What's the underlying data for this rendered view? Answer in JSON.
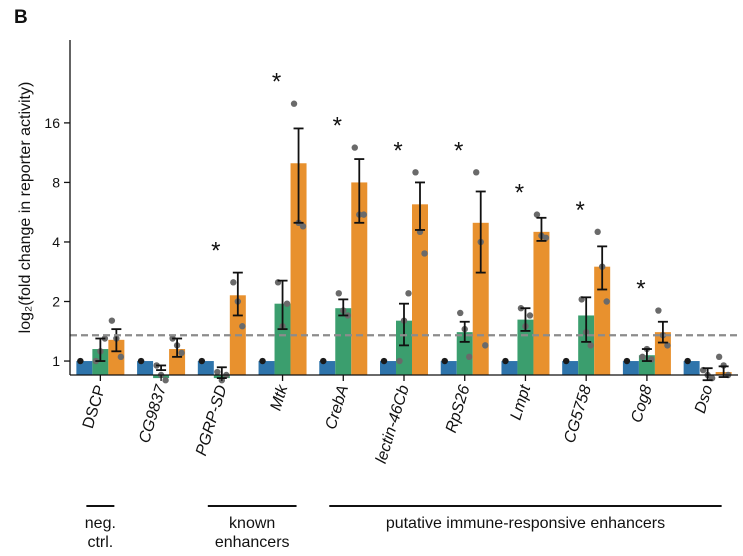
{
  "panel_label": "B",
  "chart_data": {
    "type": "bar",
    "ylabel": "log₂(fold change in reporter activity)",
    "yscale": "log2",
    "ylim": [
      0.85,
      42
    ],
    "ytick_values": [
      1,
      2,
      4,
      8,
      16
    ],
    "ytick_labels": [
      "1",
      "2",
      "4",
      "8",
      "16"
    ],
    "reference_line": {
      "y": 1.35,
      "style": "dashed",
      "color": "#8c8c8c"
    },
    "categories": [
      "DSCP",
      "CG9837",
      "PGRP-SD",
      "Mtk",
      "CrebA",
      "lectin-46Cb",
      "RpS26",
      "Lmpt",
      "CG5758",
      "Cog8",
      "Dso"
    ],
    "italic_categories": [
      false,
      true,
      true,
      true,
      true,
      true,
      true,
      true,
      true,
      true,
      true
    ],
    "series": [
      {
        "color": "#2e74ab",
        "values": [
          1.0,
          1.0,
          1.0,
          1.0,
          1.0,
          1.0,
          1.0,
          1.0,
          1.0,
          1.0,
          1.0
        ],
        "err_low": [
          null,
          null,
          null,
          null,
          null,
          null,
          null,
          null,
          null,
          null,
          null
        ],
        "err_high": [
          null,
          null,
          null,
          null,
          null,
          null,
          null,
          null,
          null,
          null,
          null
        ],
        "points": [
          [
            1.0
          ],
          [
            1.0
          ],
          [
            1.0
          ],
          [
            1.0
          ],
          [
            1.0
          ],
          [
            1.0
          ],
          [
            1.0
          ],
          [
            1.0
          ],
          [
            1.0
          ],
          [
            1.0
          ],
          [
            1.0
          ]
        ]
      },
      {
        "color": "#3b9e6e",
        "values": [
          1.15,
          0.82,
          0.82,
          1.95,
          1.85,
          1.6,
          1.4,
          1.62,
          1.7,
          1.07,
          0.85
        ],
        "err_low": [
          1.0,
          0.9,
          0.82,
          1.45,
          1.7,
          1.2,
          1.25,
          1.42,
          1.25,
          1.0,
          0.8
        ],
        "err_high": [
          1.3,
          0.95,
          0.93,
          2.55,
          2.05,
          1.95,
          1.58,
          1.85,
          2.1,
          1.15,
          0.92
        ],
        "points": [
          [
            1.0,
            1.12,
            1.3
          ],
          [
            0.95,
            0.85,
            0.8
          ],
          [
            0.88,
            0.8,
            0.85
          ],
          [
            2.5,
            1.5,
            1.95
          ],
          [
            2.2,
            1.8,
            1.7
          ],
          [
            1.0,
            1.6,
            2.2
          ],
          [
            1.75,
            1.45,
            1.05
          ],
          [
            1.85,
            1.5,
            1.7
          ],
          [
            2.05,
            1.4,
            1.2
          ],
          [
            1.05,
            1.15,
            1.02
          ],
          [
            0.9,
            0.85,
            0.82
          ]
        ]
      },
      {
        "color": "#e8912e",
        "values": [
          1.28,
          1.15,
          2.15,
          10.0,
          8.0,
          6.2,
          5.0,
          4.5,
          3.0,
          1.4,
          0.88
        ],
        "err_low": [
          1.12,
          1.05,
          1.7,
          5.0,
          5.0,
          4.6,
          2.8,
          4.05,
          2.3,
          1.24,
          0.83
        ],
        "err_high": [
          1.45,
          1.3,
          2.8,
          15.0,
          10.5,
          8.0,
          7.2,
          5.3,
          3.8,
          1.58,
          0.94
        ],
        "points": [
          [
            1.6,
            1.3,
            1.05
          ],
          [
            1.3,
            1.2,
            1.1
          ],
          [
            2.5,
            2.0,
            1.5
          ],
          [
            20.0,
            5.0,
            4.8
          ],
          [
            12.0,
            5.5,
            5.5
          ],
          [
            9.0,
            4.5,
            3.5
          ],
          [
            9.0,
            4.0,
            1.2
          ],
          [
            5.5,
            4.3,
            4.2
          ],
          [
            4.5,
            3.0,
            2.0
          ],
          [
            1.8,
            1.35,
            1.2
          ],
          [
            1.05,
            0.95,
            0.85
          ]
        ]
      }
    ],
    "significance": [
      {
        "category": "PGRP-SD",
        "label": "*"
      },
      {
        "category": "Mtk",
        "label": "*"
      },
      {
        "category": "CrebA",
        "label": "*"
      },
      {
        "category": "lectin-46Cb",
        "label": "*"
      },
      {
        "category": "RpS26",
        "label": "*"
      },
      {
        "category": "Lmpt",
        "label": "*"
      },
      {
        "category": "CG5758",
        "label": "*"
      },
      {
        "category": "Cog8",
        "label": "*"
      }
    ],
    "groups": [
      {
        "label_lines": [
          "neg.",
          "ctrl."
        ],
        "from": 0,
        "to": 0
      },
      {
        "label_lines": [
          "known",
          "enhancers"
        ],
        "from": 2,
        "to": 3
      },
      {
        "label_lines": [
          "putative immune-responsive enhancers"
        ],
        "from": 4,
        "to": 10
      }
    ]
  }
}
